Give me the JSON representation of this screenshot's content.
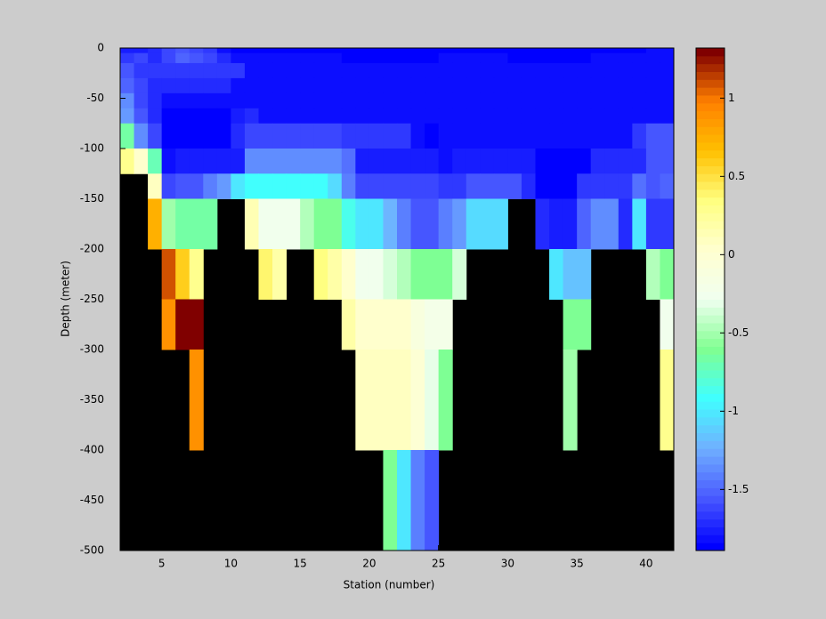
{
  "chart_data": {
    "type": "heatmap",
    "xlabel": "Station (number)",
    "ylabel": "Depth (meter)",
    "x": [
      2,
      3,
      4,
      5,
      6,
      7,
      8,
      9,
      10,
      11,
      12,
      13,
      14,
      15,
      16,
      17,
      18,
      19,
      20,
      21,
      22,
      23,
      24,
      25,
      26,
      27,
      28,
      29,
      30,
      31,
      32,
      33,
      34,
      35,
      36,
      37,
      38,
      39,
      40,
      41
    ],
    "y": [
      0,
      -5,
      -15,
      -30,
      -45,
      -60,
      -75,
      -100,
      -125,
      -150,
      -200,
      -250,
      -300,
      -400
    ],
    "values": [
      [
        -1.75,
        -1.75,
        -1.7,
        -1.6,
        -1.55,
        -1.6,
        -1.65,
        -1.8,
        -1.85,
        -1.85,
        -1.85,
        -1.85,
        -1.85,
        -1.85,
        -1.85,
        -1.85,
        -1.85,
        -1.85,
        -1.85,
        -1.85,
        -1.85,
        -1.85,
        -1.85,
        -1.85,
        -1.85,
        -1.85,
        -1.85,
        -1.85,
        -1.85,
        -1.85,
        -1.85,
        -1.85,
        -1.85,
        -1.85,
        -1.85,
        -1.85,
        -1.85,
        -1.85,
        -1.8,
        -1.8
      ],
      [
        -1.65,
        -1.6,
        -1.7,
        -1.6,
        -1.5,
        -1.55,
        -1.6,
        -1.7,
        -1.8,
        -1.8,
        -1.8,
        -1.8,
        -1.8,
        -1.8,
        -1.8,
        -1.8,
        -1.85,
        -1.85,
        -1.85,
        -1.85,
        -1.85,
        -1.85,
        -1.85,
        -1.8,
        -1.8,
        -1.8,
        -1.8,
        -1.8,
        -1.85,
        -1.85,
        -1.85,
        -1.85,
        -1.85,
        -1.85,
        -1.8,
        -1.8,
        -1.8,
        -1.8,
        -1.8,
        -1.8
      ],
      [
        -1.55,
        -1.65,
        -1.65,
        -1.65,
        -1.65,
        -1.65,
        -1.65,
        -1.65,
        -1.65,
        -1.8,
        -1.8,
        -1.8,
        -1.8,
        -1.8,
        -1.8,
        -1.8,
        -1.8,
        -1.8,
        -1.8,
        -1.8,
        -1.8,
        -1.8,
        -1.8,
        -1.8,
        -1.8,
        -1.8,
        -1.8,
        -1.8,
        -1.8,
        -1.8,
        -1.8,
        -1.8,
        -1.8,
        -1.8,
        -1.8,
        -1.8,
        -1.8,
        -1.8,
        -1.8,
        -1.8
      ],
      [
        -1.5,
        -1.6,
        -1.7,
        -1.7,
        -1.7,
        -1.7,
        -1.7,
        -1.7,
        -1.8,
        -1.8,
        -1.8,
        -1.8,
        -1.8,
        -1.8,
        -1.8,
        -1.8,
        -1.8,
        -1.8,
        -1.8,
        -1.8,
        -1.8,
        -1.8,
        -1.8,
        -1.8,
        -1.8,
        -1.8,
        -1.8,
        -1.8,
        -1.8,
        -1.8,
        -1.8,
        -1.8,
        -1.8,
        -1.8,
        -1.8,
        -1.8,
        -1.8,
        -1.8,
        -1.8,
        -1.8
      ],
      [
        -1.35,
        -1.6,
        -1.7,
        -1.8,
        -1.8,
        -1.8,
        -1.8,
        -1.8,
        -1.8,
        -1.8,
        -1.8,
        -1.8,
        -1.8,
        -1.8,
        -1.8,
        -1.8,
        -1.8,
        -1.8,
        -1.8,
        -1.8,
        -1.8,
        -1.8,
        -1.8,
        -1.8,
        -1.8,
        -1.8,
        -1.8,
        -1.8,
        -1.8,
        -1.8,
        -1.8,
        -1.8,
        -1.8,
        -1.8,
        -1.8,
        -1.8,
        -1.8,
        -1.8,
        -1.8,
        -1.8
      ],
      [
        -1.3,
        -1.55,
        -1.7,
        -1.85,
        -1.85,
        -1.85,
        -1.85,
        -1.85,
        -1.75,
        -1.7,
        -1.8,
        -1.8,
        -1.8,
        -1.8,
        -1.8,
        -1.8,
        -1.8,
        -1.8,
        -1.8,
        -1.8,
        -1.8,
        -1.8,
        -1.8,
        -1.8,
        -1.8,
        -1.8,
        -1.8,
        -1.8,
        -1.8,
        -1.8,
        -1.8,
        -1.8,
        -1.8,
        -1.8,
        -1.8,
        -1.8,
        -1.8,
        -1.8,
        -1.8,
        -1.8
      ],
      [
        -0.65,
        -1.35,
        -1.6,
        -1.85,
        -1.85,
        -1.85,
        -1.85,
        -1.85,
        -1.7,
        -1.6,
        -1.6,
        -1.6,
        -1.6,
        -1.6,
        -1.6,
        -1.6,
        -1.65,
        -1.65,
        -1.65,
        -1.65,
        -1.65,
        -1.8,
        -1.85,
        -1.8,
        -1.8,
        -1.8,
        -1.8,
        -1.8,
        -1.8,
        -1.8,
        -1.8,
        -1.8,
        -1.8,
        -1.8,
        -1.8,
        -1.8,
        -1.8,
        -1.65,
        -1.55,
        -1.55
      ],
      [
        0.3,
        0.05,
        -0.7,
        -1.8,
        -1.75,
        -1.75,
        -1.75,
        -1.75,
        -1.75,
        -1.35,
        -1.35,
        -1.35,
        -1.35,
        -1.35,
        -1.35,
        -1.35,
        -1.45,
        -1.75,
        -1.75,
        -1.75,
        -1.75,
        -1.75,
        -1.75,
        -1.8,
        -1.75,
        -1.75,
        -1.75,
        -1.75,
        -1.75,
        -1.75,
        -1.9,
        -1.9,
        -1.9,
        -1.9,
        -1.7,
        -1.7,
        -1.7,
        -1.7,
        -1.55,
        -1.55
      ],
      [
        null,
        null,
        0.1,
        -1.6,
        -1.55,
        -1.55,
        -1.4,
        -1.3,
        -1.0,
        -0.9,
        -0.9,
        -0.9,
        -0.9,
        -0.9,
        -0.9,
        -1.05,
        -1.4,
        -1.6,
        -1.6,
        -1.6,
        -1.6,
        -1.6,
        -1.6,
        -1.65,
        -1.65,
        -1.55,
        -1.55,
        -1.55,
        -1.55,
        -1.7,
        -1.85,
        -1.85,
        -1.85,
        -1.65,
        -1.65,
        -1.65,
        -1.65,
        -1.45,
        -1.55,
        -1.5
      ],
      [
        null,
        null,
        0.75,
        -0.5,
        -0.65,
        -0.65,
        -0.65,
        null,
        null,
        0.15,
        -0.25,
        -0.25,
        -0.25,
        -0.45,
        -0.6,
        -0.6,
        -0.85,
        -1.0,
        -1.0,
        -1.2,
        -1.4,
        -1.55,
        -1.55,
        -1.4,
        -1.3,
        -1.05,
        -1.05,
        -1.05,
        null,
        null,
        -1.7,
        -1.75,
        -1.75,
        -1.5,
        -1.35,
        -1.35,
        -1.7,
        -1.0,
        -1.65,
        -1.65
      ],
      [
        null,
        null,
        null,
        1.1,
        0.6,
        0.3,
        null,
        null,
        null,
        null,
        0.4,
        0.2,
        null,
        null,
        0.35,
        0.2,
        0.05,
        -0.25,
        -0.25,
        -0.35,
        -0.45,
        -0.6,
        -0.6,
        -0.6,
        -0.35,
        null,
        null,
        null,
        null,
        null,
        null,
        -1.0,
        -1.15,
        -1.15,
        null,
        null,
        null,
        null,
        -0.45,
        -0.6
      ],
      [
        null,
        null,
        null,
        0.9,
        1.3,
        1.3,
        null,
        null,
        null,
        null,
        null,
        null,
        null,
        null,
        null,
        null,
        0.2,
        0.05,
        0.05,
        0.05,
        0.05,
        -0.1,
        -0.2,
        -0.2,
        null,
        null,
        null,
        null,
        null,
        null,
        null,
        null,
        -0.6,
        -0.6,
        null,
        null,
        null,
        null,
        null,
        -0.25
      ],
      [
        null,
        null,
        null,
        null,
        null,
        0.9,
        null,
        null,
        null,
        null,
        null,
        null,
        null,
        null,
        null,
        null,
        null,
        0.1,
        0.1,
        0.1,
        0.1,
        0.0,
        -0.3,
        -0.6,
        null,
        null,
        null,
        null,
        null,
        null,
        null,
        null,
        -0.5,
        null,
        null,
        null,
        null,
        null,
        null,
        0.3
      ],
      [
        null,
        null,
        null,
        null,
        null,
        null,
        null,
        null,
        null,
        null,
        null,
        null,
        null,
        null,
        null,
        null,
        null,
        null,
        null,
        -0.6,
        -1.0,
        -1.4,
        -1.55,
        null,
        null,
        null,
        null,
        null,
        null,
        null,
        null,
        null,
        null,
        null,
        null,
        null,
        null,
        null,
        null,
        null
      ]
    ],
    "xlim": [
      2,
      42
    ],
    "ylim": [
      -500,
      0
    ],
    "xticks": [
      5,
      10,
      15,
      20,
      25,
      30,
      35,
      40
    ],
    "yticks": [
      -500,
      -450,
      -400,
      -350,
      -300,
      -250,
      -200,
      -150,
      -100,
      -50,
      0
    ],
    "clim": [
      -1.89,
      1.32
    ],
    "cticks": [
      -1.5,
      -1,
      -0.5,
      0,
      0.5,
      1
    ],
    "colormap": [
      "#0000ff",
      "#4a5aff",
      "#70b0ff",
      "#40ffff",
      "#80ff90",
      "#f0fff0",
      "#ffffd0",
      "#ffff80",
      "#ffc000",
      "#ff8000",
      "#800000"
    ],
    "colormap_levels": 64,
    "background": "#000000"
  }
}
